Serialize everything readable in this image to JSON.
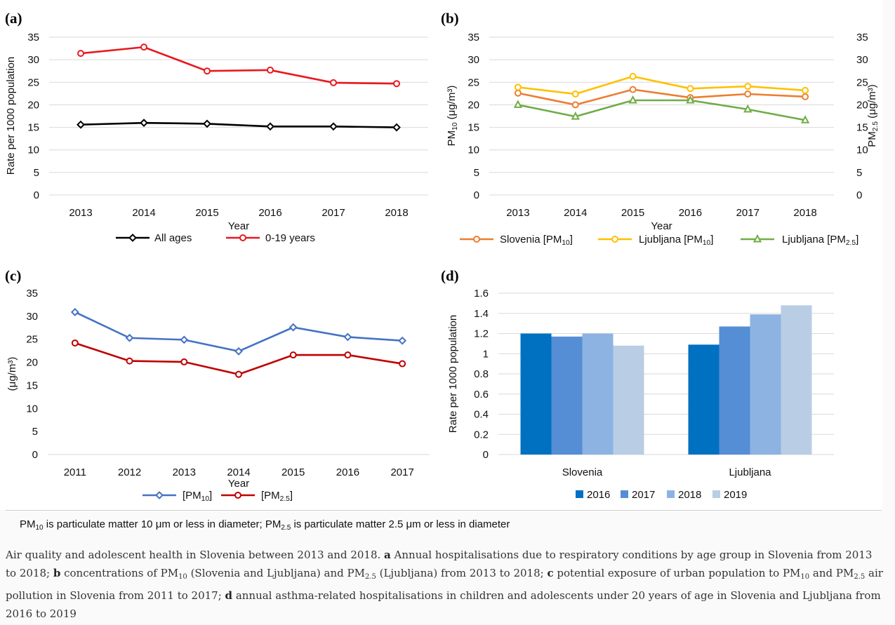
{
  "panels": {
    "a": {
      "letter": "(a)"
    },
    "b": {
      "letter": "(b)"
    },
    "c": {
      "letter": "(c)"
    },
    "d": {
      "letter": "(d)"
    }
  },
  "chart_data": [
    {
      "id": "a",
      "type": "line",
      "title": "",
      "xlabel": "Year",
      "ylabel": "Rate per 1000 population",
      "ylim": [
        0,
        35
      ],
      "yticks": [
        0,
        5,
        10,
        15,
        20,
        25,
        30,
        35
      ],
      "grid": true,
      "legend": "bottom",
      "categories": [
        "2013",
        "2014",
        "2015",
        "2016",
        "2017",
        "2018"
      ],
      "series": [
        {
          "name": "All ages",
          "color": "#000000",
          "marker": "diamond",
          "values": [
            15.6,
            16.0,
            15.8,
            15.2,
            15.2,
            15.0
          ]
        },
        {
          "name": "0-19 years",
          "color": "#e8191f",
          "marker": "circle",
          "values": [
            31.4,
            32.8,
            27.5,
            27.7,
            24.9,
            24.7
          ]
        }
      ]
    },
    {
      "id": "b",
      "type": "line",
      "title": "",
      "xlabel": "Year",
      "ylabel": "PM10 (μg/m³)",
      "ylabel_right": "PM2.5 (μg/m³)",
      "ylim": [
        0,
        35
      ],
      "yticks": [
        0,
        5,
        10,
        15,
        20,
        25,
        30,
        35
      ],
      "grid": true,
      "legend": "bottom",
      "categories": [
        "2013",
        "2014",
        "2015",
        "2016",
        "2017",
        "2018"
      ],
      "series": [
        {
          "name": "Slovenia [PM10]",
          "color": "#ed7d31",
          "marker": "circle",
          "values": [
            22.6,
            20.0,
            23.4,
            21.6,
            22.4,
            21.8
          ]
        },
        {
          "name": "Ljubljana [PM10]",
          "color": "#ffc000",
          "marker": "circle",
          "values": [
            23.9,
            22.4,
            26.3,
            23.6,
            24.1,
            23.2
          ]
        },
        {
          "name": "Ljubljana [PM2.5]",
          "color": "#70ad47",
          "marker": "triangle",
          "values": [
            20.0,
            17.4,
            21.0,
            21.0,
            19.0,
            16.6
          ]
        }
      ]
    },
    {
      "id": "c",
      "type": "line",
      "title": "",
      "xlabel": "Year",
      "ylabel": "(μg/m³)",
      "ylim": [
        0,
        35
      ],
      "yticks": [
        0,
        5,
        10,
        15,
        20,
        25,
        30,
        35
      ],
      "grid": false,
      "legend": "bottom",
      "categories": [
        "2011",
        "2012",
        "2013",
        "2014",
        "2015",
        "2016",
        "2017"
      ],
      "series": [
        {
          "name": "[PM10]",
          "color": "#4472c4",
          "marker": "diamond",
          "values": [
            30.9,
            25.3,
            24.9,
            22.4,
            27.6,
            25.5,
            24.7
          ]
        },
        {
          "name": "[PM2.5]",
          "color": "#c00000",
          "marker": "circle",
          "values": [
            24.2,
            20.3,
            20.1,
            17.4,
            21.6,
            21.6,
            19.7
          ]
        }
      ]
    },
    {
      "id": "d",
      "type": "bar",
      "title": "",
      "xlabel": "",
      "ylabel": "Rate per 1000 population",
      "ylim": [
        0,
        1.6
      ],
      "yticks": [
        0,
        0.2,
        0.4,
        0.6,
        0.8,
        1,
        1.2,
        1.4,
        1.6
      ],
      "grid": true,
      "legend": "bottom",
      "categories": [
        "Slovenia",
        "Ljubljana"
      ],
      "series": [
        {
          "name": "2016",
          "color": "#0070c0",
          "values": [
            1.2,
            1.09
          ]
        },
        {
          "name": "2017",
          "color": "#558ed5",
          "values": [
            1.17,
            1.27
          ]
        },
        {
          "name": "2018",
          "color": "#8db3e2",
          "values": [
            1.2,
            1.39
          ]
        },
        {
          "name": "2019",
          "color": "#b9cde5",
          "values": [
            1.08,
            1.48
          ]
        }
      ]
    }
  ],
  "note": {
    "pm10": "PM",
    "pm10_sub": "10",
    "pm10_text": " is particulate matter 10 μm or less in diameter; ",
    "pm25": "PM",
    "pm25_sub": "2.5",
    "pm25_text": " is particulate matter 2.5 μm or less in diameter"
  },
  "caption": {
    "t1": "Air quality and adolescent health in Slovenia between 2013 and 2018. ",
    "a": "a",
    "t2": " Annual hospitalisations due to respiratory conditions by age group in Slovenia from 2013 to 2018; ",
    "b": "b",
    "t3": " concentrations of PM",
    "s1": "10",
    "t4": " (Slovenia and Ljubljana) and PM",
    "s2": "2.5",
    "t5": " (Ljubljana) from 2013 to 2018; ",
    "c": "c",
    "t6": " potential exposure of urban population to PM",
    "s3": "10",
    "t7": " and PM",
    "s4": "2.5",
    "t8": " air pollution in Slovenia from 2011 to 2017; ",
    "d": "d",
    "t9": " annual asthma-related hospitalisations in children and adolescents under 20 years of age in Slovenia and Ljubljana from 2016 to 2019"
  }
}
